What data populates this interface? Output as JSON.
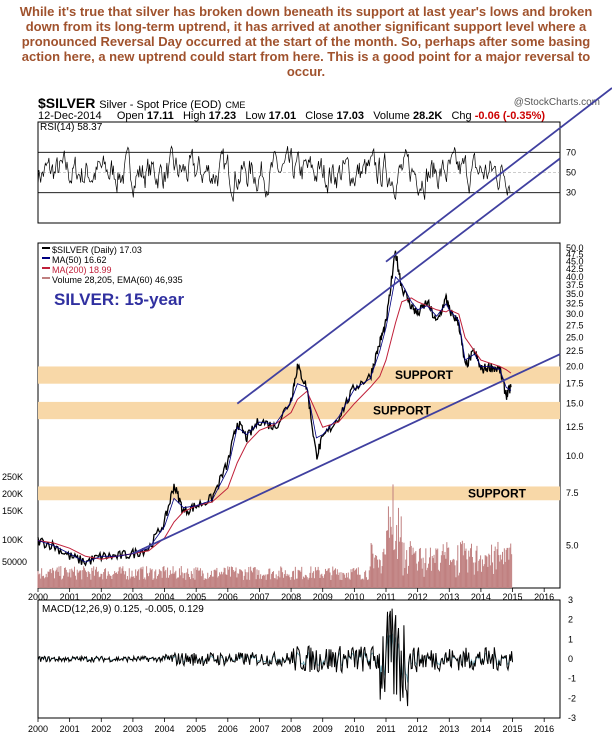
{
  "commentary": "While it's true that silver has broken down beneath its support at last year's lows and broken down from its long-term uptrend, it has arrived at another significant support level where a pronounced Reversal Day occurred at the start of the month. So, perhaps after some basing action here, a new uptrend could start from here. This is a good point for a major reversal to occur.",
  "header": {
    "symbol": "$SILVER",
    "name": "Silver - Spot Price (EOD)",
    "exchange": "CME",
    "source": "@StockCharts.com",
    "date": "12-Dec-2014",
    "open_label": "Open",
    "open": "17.11",
    "high_label": "High",
    "high": "17.23",
    "low_label": "Low",
    "low": "17.01",
    "close_label": "Close",
    "close": "17.03",
    "volume_label": "Volume",
    "volume": "28.2K",
    "chg_label": "Chg",
    "chg": "-0.06 (-0.35%)"
  },
  "colors": {
    "price": "#000000",
    "ma50": "#000080",
    "ma200": "#c0203a",
    "volume": "#c08080",
    "trendline": "#4040a0",
    "support_band": "#f8d8a8",
    "commentary": "#a0522d",
    "title_blue": "#3030a0"
  },
  "chart_data": [
    {
      "type": "line",
      "panel": "RSI",
      "title": "RSI(14) 58.37",
      "y_ticks": [
        70,
        50,
        30
      ],
      "ylim": [
        0,
        100
      ],
      "reference_lines": [
        70,
        30
      ],
      "last_value": 58.37
    },
    {
      "type": "line",
      "panel": "price",
      "legend": [
        "$SILVER (Daily) 17.03",
        "MA(50) 16.62",
        "MA(200) 18.99",
        "Volume 28,205, EMA(60) 46,935"
      ],
      "chart_title": "SILVER: 15-year",
      "scale": "log",
      "x_ticks": [
        "2000",
        "2001",
        "2002",
        "2003",
        "2004",
        "2005",
        "2006",
        "2007",
        "2008",
        "2009",
        "2010",
        "2011",
        "2012",
        "2013",
        "2014",
        "2015",
        "2016"
      ],
      "y_ticks": [
        "50.0",
        "47.5",
        "45.0",
        "42.5",
        "40.0",
        "37.5",
        "35.0",
        "32.5",
        "30.0",
        "27.5",
        "25.0",
        "22.5",
        "20.0",
        "17.5",
        "15.0",
        "12.5",
        "10.0",
        "7.5",
        "5.0"
      ],
      "volume_ticks": [
        "250K",
        "200K",
        "150K",
        "100K",
        "50000"
      ],
      "x": [
        2000.0,
        2000.5,
        2001.0,
        2001.5,
        2002.0,
        2002.5,
        2003.0,
        2003.5,
        2004.0,
        2004.3,
        2004.6,
        2005.0,
        2005.5,
        2006.0,
        2006.3,
        2006.6,
        2007.0,
        2007.5,
        2008.0,
        2008.2,
        2008.5,
        2008.8,
        2009.0,
        2009.5,
        2010.0,
        2010.5,
        2010.8,
        2011.0,
        2011.3,
        2011.5,
        2011.8,
        2012.0,
        2012.3,
        2012.6,
        2012.9,
        2013.0,
        2013.3,
        2013.5,
        2013.8,
        2014.0,
        2014.3,
        2014.6,
        2014.8,
        2014.95
      ],
      "price": [
        5.2,
        5.0,
        4.6,
        4.4,
        4.6,
        4.6,
        4.7,
        4.9,
        6.0,
        8.0,
        6.5,
        6.8,
        7.2,
        9.5,
        13.0,
        11.5,
        13.2,
        12.5,
        15.5,
        20.0,
        17.0,
        10.0,
        11.5,
        13.5,
        17.0,
        18.5,
        24.0,
        28.0,
        48.5,
        37.0,
        32.0,
        30.0,
        33.0,
        28.0,
        34.0,
        31.0,
        28.0,
        20.0,
        22.5,
        19.5,
        20.0,
        19.5,
        16.0,
        17.03
      ],
      "ma50": [
        5.2,
        5.0,
        4.7,
        4.4,
        4.6,
        4.6,
        4.7,
        4.9,
        5.8,
        7.2,
        6.7,
        6.8,
        7.1,
        9.0,
        12.5,
        11.8,
        13.0,
        12.8,
        15.2,
        17.5,
        17.0,
        11.5,
        11.8,
        13.5,
        16.8,
        18.2,
        22.5,
        27.0,
        40.0,
        38.0,
        33.0,
        31.0,
        32.0,
        29.5,
        32.5,
        31.0,
        28.5,
        21.0,
        22.0,
        20.0,
        20.0,
        19.5,
        17.0,
        16.62
      ],
      "ma200": [
        5.2,
        5.1,
        4.9,
        4.6,
        4.5,
        4.6,
        4.7,
        4.8,
        5.3,
        6.0,
        6.5,
        6.8,
        7.0,
        7.8,
        9.5,
        11.0,
        12.2,
        12.8,
        14.0,
        15.5,
        16.5,
        14.0,
        12.5,
        13.0,
        15.0,
        17.0,
        18.5,
        21.0,
        28.0,
        33.0,
        34.0,
        33.0,
        32.0,
        31.0,
        30.5,
        31.0,
        30.0,
        25.0,
        22.5,
        21.0,
        20.5,
        20.0,
        19.5,
        18.99
      ],
      "support_zones": [
        {
          "label": "SUPPORT",
          "low": 17.5,
          "high": 20.0
        },
        {
          "label": "SUPPORT",
          "low": 13.3,
          "high": 15.2
        },
        {
          "label": "SUPPORT",
          "low": 7.1,
          "high": 7.9
        }
      ],
      "trendlines": [
        {
          "from": [
            2003.0,
            4.7
          ],
          "to": [
            2015.0,
            16.5
          ],
          "extends_to": [
            2016.5,
            22.0
          ]
        },
        {
          "from": [
            2006.3,
            15.0
          ],
          "to": [
            2011.0,
            45.0
          ],
          "extends_to": [
            2016.5,
            100.0
          ]
        }
      ]
    },
    {
      "type": "line",
      "panel": "MACD",
      "title": "MACD(12,26,9) 0.125, -0.005, 0.129",
      "y_ticks": [
        3,
        2,
        1,
        0,
        -1,
        -2,
        -3
      ],
      "ylim": [
        -3,
        3
      ],
      "x_ticks": [
        "2000",
        "2001",
        "2002",
        "2003",
        "2004",
        "2005",
        "2006",
        "2007",
        "2008",
        "2009",
        "2010",
        "2011",
        "2012",
        "2013",
        "2014",
        "2015",
        "2016"
      ]
    }
  ]
}
